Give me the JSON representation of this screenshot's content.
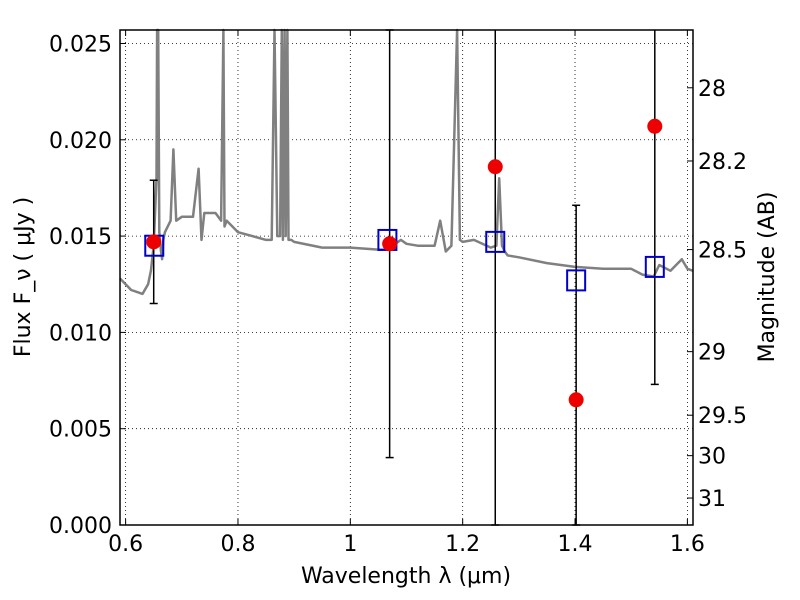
{
  "chart_data": {
    "type": "scatter",
    "title": "",
    "xlabel": "Wavelength  λ (μm)",
    "ylabel": "Flux  F_ν  ( μJy )",
    "ylabel_right": "Magnitude (AB)",
    "xlim": [
      0.59,
      1.61
    ],
    "ylim": [
      0.0,
      0.0257
    ],
    "grid": true,
    "x_ticks": [
      {
        "value": 0.6,
        "label": "0.6"
      },
      {
        "value": 0.8,
        "label": "0.8"
      },
      {
        "value": 1.0,
        "label": "1"
      },
      {
        "value": 1.2,
        "label": "1.2"
      },
      {
        "value": 1.4,
        "label": "1.4"
      },
      {
        "value": 1.6,
        "label": "1.6"
      }
    ],
    "y_ticks": [
      {
        "value": 0.0,
        "label": "0.000"
      },
      {
        "value": 0.005,
        "label": "0.005"
      },
      {
        "value": 0.01,
        "label": "0.010"
      },
      {
        "value": 0.015,
        "label": "0.015"
      },
      {
        "value": 0.02,
        "label": "0.020"
      },
      {
        "value": 0.025,
        "label": "0.025"
      }
    ],
    "right_ticks": [
      {
        "label": "28",
        "flux": 0.0227
      },
      {
        "label": "28.2",
        "flux": 0.0189
      },
      {
        "label": "28.5",
        "flux": 0.0143
      },
      {
        "label": "29",
        "flux": 0.009
      },
      {
        "label": "29.5",
        "flux": 0.0057
      },
      {
        "label": "30",
        "flux": 0.0036
      },
      {
        "label": "31",
        "flux": 0.0014
      }
    ],
    "series": [
      {
        "kind": "model_spectrum",
        "color": "#808080",
        "x": [
          0.59,
          0.6,
          0.61,
          0.62,
          0.63,
          0.64,
          0.645,
          0.65,
          0.655,
          0.656,
          0.658,
          0.66,
          0.663,
          0.665,
          0.667,
          0.67,
          0.68,
          0.685,
          0.69,
          0.7,
          0.72,
          0.73,
          0.735,
          0.74,
          0.76,
          0.77,
          0.774,
          0.776,
          0.78,
          0.79,
          0.8,
          0.85,
          0.86,
          0.865,
          0.87,
          0.875,
          0.878,
          0.88,
          0.883,
          0.885,
          0.888,
          0.89,
          0.895,
          0.9,
          0.95,
          1.0,
          1.05,
          1.07,
          1.08,
          1.09,
          1.1,
          1.12,
          1.15,
          1.16,
          1.17,
          1.18,
          1.19,
          1.195,
          1.2,
          1.22,
          1.25,
          1.26,
          1.265,
          1.27,
          1.275,
          1.28,
          1.3,
          1.35,
          1.4,
          1.45,
          1.5,
          1.52,
          1.54,
          1.55,
          1.57,
          1.59,
          1.6,
          1.61
        ],
        "y": [
          0.0128,
          0.0125,
          0.0122,
          0.0121,
          0.012,
          0.0125,
          0.0132,
          0.0145,
          0.018,
          0.03,
          0.03,
          0.0152,
          0.0142,
          0.0138,
          0.0148,
          0.0152,
          0.0158,
          0.0195,
          0.0158,
          0.016,
          0.016,
          0.0185,
          0.0148,
          0.0162,
          0.0162,
          0.0158,
          0.03,
          0.0155,
          0.0158,
          0.0155,
          0.0152,
          0.0148,
          0.0148,
          0.03,
          0.015,
          0.015,
          0.03,
          0.0148,
          0.03,
          0.015,
          0.03,
          0.0148,
          0.0148,
          0.0147,
          0.0144,
          0.0144,
          0.0143,
          0.0143,
          0.0146,
          0.0148,
          0.0146,
          0.0145,
          0.0145,
          0.0158,
          0.0142,
          0.0145,
          0.03,
          0.0148,
          0.0147,
          0.0148,
          0.0144,
          0.0145,
          0.018,
          0.0145,
          0.0142,
          0.014,
          0.0139,
          0.0136,
          0.0134,
          0.0133,
          0.0133,
          0.013,
          0.0129,
          0.0135,
          0.0132,
          0.0138,
          0.0133,
          0.0132
        ]
      },
      {
        "kind": "model_photometry",
        "color": "#0000cc",
        "marker": "open-square",
        "x": [
          0.651,
          1.066,
          1.258,
          1.402,
          1.542
        ],
        "y": [
          0.0145,
          0.0148,
          0.0147,
          0.0127,
          0.0134
        ]
      },
      {
        "kind": "observed_photometry",
        "color": "#ee0000",
        "marker": "filled-circle",
        "x": [
          0.65,
          1.07,
          1.258,
          1.402,
          1.542
        ],
        "y": [
          0.0147,
          0.0146,
          0.0186,
          0.0065,
          0.0207
        ],
        "err_low": [
          0.0032,
          0.0111,
          0.0186,
          0.0065,
          0.0134
        ],
        "err_high": [
          0.0032,
          0.0111,
          0.0186,
          0.0101,
          0.0134
        ]
      }
    ]
  }
}
